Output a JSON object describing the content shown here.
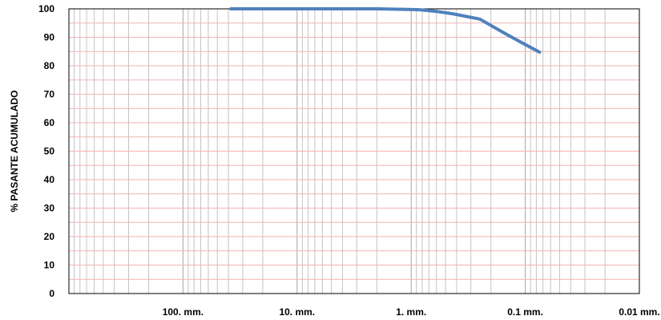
{
  "chart_data": {
    "type": "line",
    "title": "",
    "xlabel": "",
    "ylabel": "% PASANTE ACUMULADO",
    "x_scale": "log",
    "x_reversed": true,
    "xlim": [
      1000,
      0.01
    ],
    "ylim": [
      0,
      100
    ],
    "yticks": [
      0,
      10,
      20,
      30,
      40,
      50,
      60,
      70,
      80,
      90,
      100
    ],
    "xticks": [
      {
        "value": 100,
        "label": "100. mm."
      },
      {
        "value": 10,
        "label": "10. mm."
      },
      {
        "value": 1,
        "label": "1. mm."
      },
      {
        "value": 0.1,
        "label": "0.1 mm."
      },
      {
        "value": 0.01,
        "label": "0.01 mm."
      }
    ],
    "grid": true,
    "series": [
      {
        "color": "#4F81BD",
        "x": [
          38.1,
          25.4,
          19.05,
          12.7,
          9.525,
          4.76,
          2.0,
          0.85,
          0.6,
          0.425,
          0.25,
          0.15,
          0.106,
          0.075
        ],
        "y": [
          100,
          100,
          100,
          100,
          100,
          100,
          100,
          99.7,
          99.1,
          98.2,
          96.4,
          91.3,
          88.0,
          84.8
        ]
      }
    ],
    "colors": {
      "line": "#4F81BD",
      "major_grid": "#a6a6a6",
      "minor_grid": "#c4c4c4",
      "horizontal_grid": "#f2b3b3"
    }
  }
}
